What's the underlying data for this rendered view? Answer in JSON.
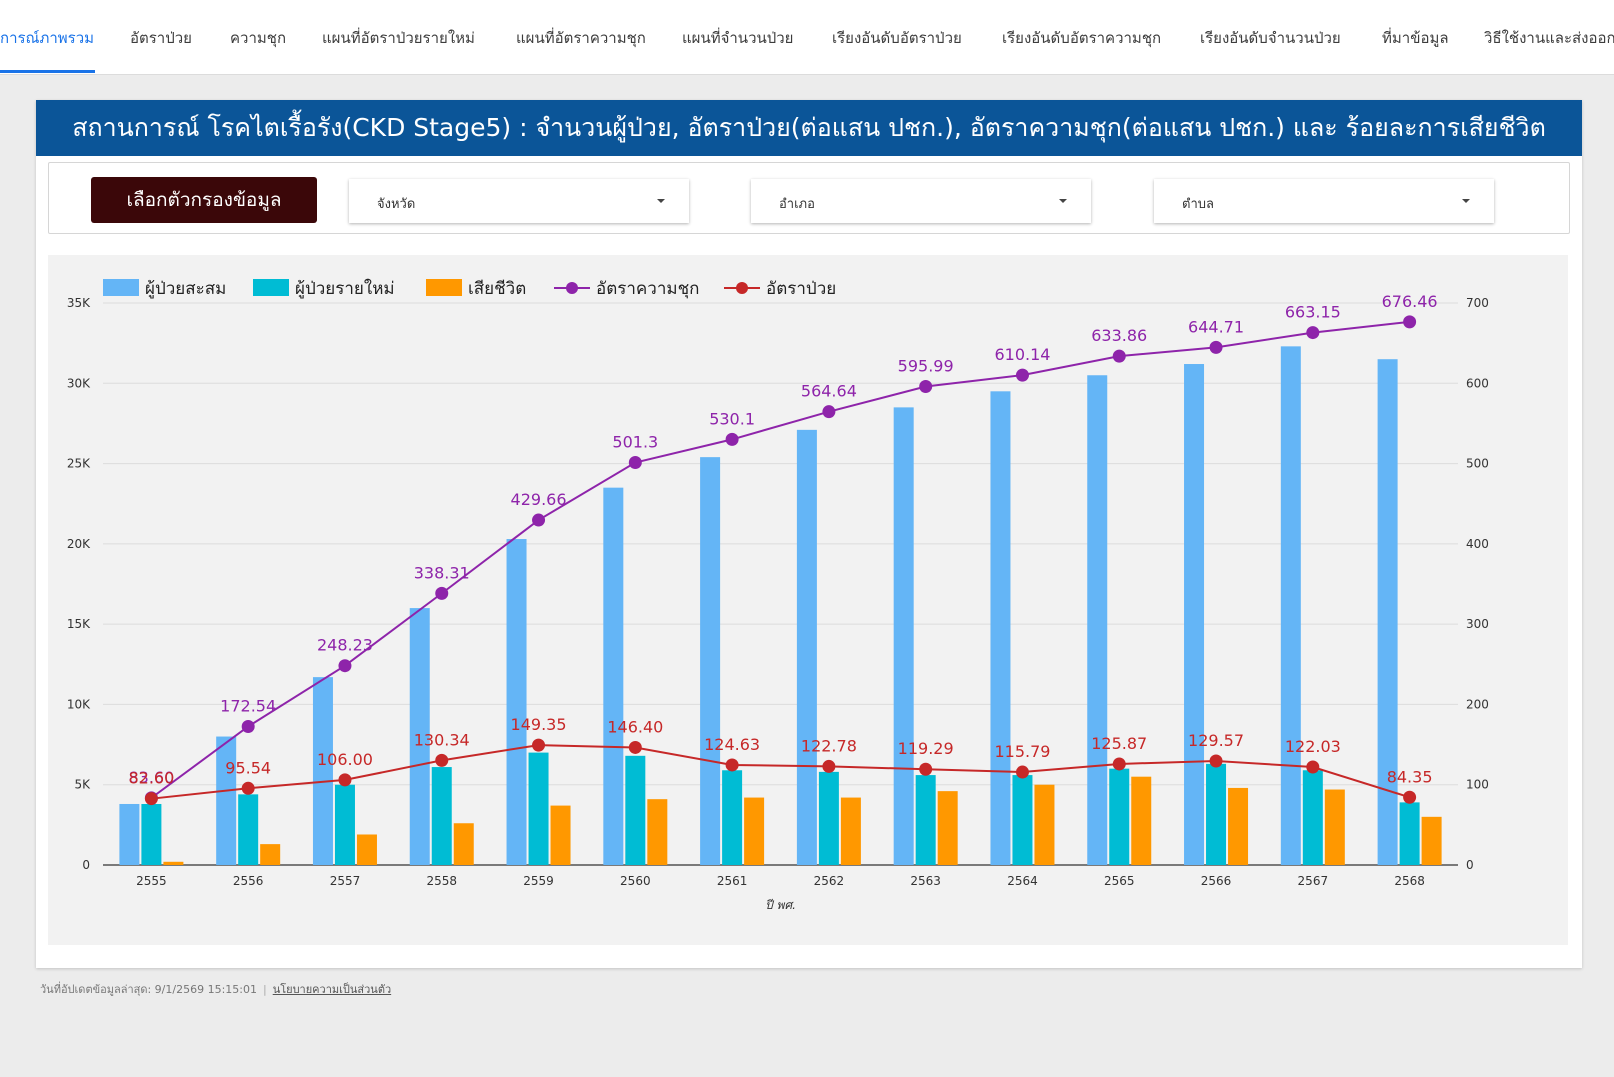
{
  "nav": {
    "tabs": [
      {
        "label": "การณ์ภาพรวม",
        "active": true
      },
      {
        "label": "อัตราป่วย"
      },
      {
        "label": "ความชุก"
      },
      {
        "label": "แผนที่อัตราป่วยรายใหม่"
      },
      {
        "label": "แผนที่อัตราความชุก"
      },
      {
        "label": "แผนที่จำนวนป่วย"
      },
      {
        "label": "เรียงอันดับอัตราป่วย"
      },
      {
        "label": "เรียงอันดับอัตราความชุก"
      },
      {
        "label": "เรียงอันดับจำนวนป่วย"
      },
      {
        "label": "ที่มาข้อมูล"
      },
      {
        "label": "วิธีใช้งานและส่งออก"
      }
    ]
  },
  "report": {
    "title": "สถานการณ์ โรคไตเรื้อรัง(CKD Stage5) : จำนวนผู้ป่วย, อัตราป่วย(ต่อแสน ปชก.),  อัตราความชุก(ต่อแสน ปชก.) และ ร้อยละการเสียชีวิต"
  },
  "filters": {
    "button_label": "เลือกตัวกรองข้อมูล",
    "province": "จังหวัด",
    "district": "อำเภอ",
    "subdistrict": "ตำบล"
  },
  "colors": {
    "cumulative": "#64b5f6",
    "new": "#00bcd4",
    "deaths": "#ff9800",
    "prevalence": "#8e24aa",
    "incidence": "#c62828"
  },
  "chart_data": {
    "type": "bar",
    "xlabel": "ปี พศ.",
    "categories": [
      "2555",
      "2556",
      "2557",
      "2558",
      "2559",
      "2560",
      "2561",
      "2562",
      "2563",
      "2564",
      "2565",
      "2566",
      "2567",
      "2568"
    ],
    "y_left": {
      "ticks": [
        "0",
        "5K",
        "10K",
        "15K",
        "20K",
        "25K",
        "30K",
        "35K"
      ],
      "range": [
        0,
        35000
      ]
    },
    "y_right": {
      "ticks": [
        "0",
        "100",
        "200",
        "300",
        "400",
        "500",
        "600",
        "700"
      ],
      "range": [
        0,
        700
      ]
    },
    "grid": true,
    "legend_position": "top-left",
    "series": [
      {
        "name": "ผู้ป่วยสะสม",
        "type": "bar",
        "axis": "left",
        "values": [
          3800,
          8000,
          11700,
          16000,
          20300,
          23500,
          25400,
          27100,
          28500,
          29500,
          30500,
          31200,
          32300,
          31500
        ]
      },
      {
        "name": "ผู้ป่วยรายใหม่",
        "type": "bar",
        "axis": "left",
        "values": [
          3800,
          4400,
          5000,
          6100,
          7000,
          6800,
          5900,
          5800,
          5600,
          5600,
          6000,
          6300,
          5900,
          3900
        ]
      },
      {
        "name": "เสียชีวิต",
        "type": "bar",
        "axis": "left",
        "values": [
          200,
          1300,
          1900,
          2600,
          3700,
          4100,
          4200,
          4200,
          4600,
          5000,
          5500,
          4800,
          4700,
          3000
        ]
      },
      {
        "name": "อัตราความชุก",
        "type": "line",
        "axis": "right",
        "values": [
          83.6,
          172.54,
          248.23,
          338.31,
          429.66,
          501.3,
          530.1,
          564.64,
          595.99,
          610.14,
          633.86,
          644.71,
          663.15,
          676.46
        ],
        "labels": [
          "83.60",
          "172.54",
          "248.23",
          "338.31",
          "429.66",
          "501.3",
          "530.1",
          "564.64",
          "595.99",
          "610.14",
          "633.86",
          "644.71",
          "663.15",
          "676.46"
        ]
      },
      {
        "name": "อัตราป่วย",
        "type": "line",
        "axis": "right",
        "values": [
          82.6,
          95.54,
          106.0,
          130.34,
          149.35,
          146.4,
          124.63,
          122.78,
          119.29,
          115.79,
          125.87,
          129.57,
          122.03,
          84.35
        ],
        "labels": [
          "82.60",
          "95.54",
          "106.00",
          "130.34",
          "149.35",
          "146.40",
          "124.63",
          "122.78",
          "119.29",
          "115.79",
          "125.87",
          "129.57",
          "122.03",
          "84.35"
        ]
      }
    ]
  },
  "footer": {
    "updated": "วันที่อัปเดตข้อมูลล่าสุด: 9/1/2569 15:15:01",
    "privacy": "นโยบายความเป็นส่วนตัว"
  }
}
